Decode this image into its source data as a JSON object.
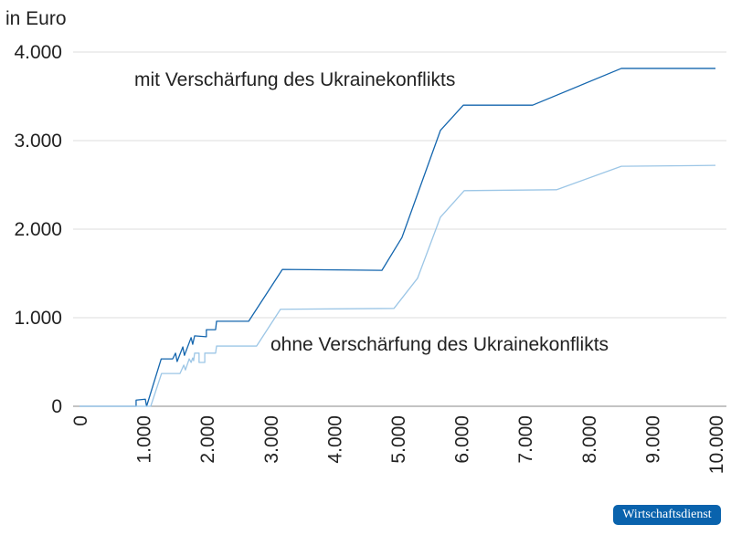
{
  "chart_data": {
    "type": "line",
    "ylabel": "in Euro",
    "ylim": [
      0,
      4000
    ],
    "xlim": [
      0,
      10000
    ],
    "yticks": [
      "0",
      "1.000",
      "2.000",
      "3.000",
      "4.000"
    ],
    "ytick_values": [
      0,
      1000,
      2000,
      3000,
      4000
    ],
    "xticks": [
      "0",
      "1.000",
      "2.000",
      "3.000",
      "4.000",
      "5.000",
      "6.000",
      "7.000",
      "8.000",
      "9.000",
      "10.000"
    ],
    "xtick_values": [
      0,
      1000,
      2000,
      3000,
      4000,
      5000,
      6000,
      7000,
      8000,
      9000,
      10000
    ],
    "grid": "horizontal",
    "series": [
      {
        "name": "mit Verschärfung des Ukrainekonflikts",
        "color": "#1466ae",
        "points": [
          [
            0,
            0
          ],
          [
            890,
            0
          ],
          [
            890,
            70
          ],
          [
            1035,
            80
          ],
          [
            1055,
            0
          ],
          [
            1285,
            535
          ],
          [
            1465,
            535
          ],
          [
            1510,
            600
          ],
          [
            1535,
            505
          ],
          [
            1625,
            670
          ],
          [
            1650,
            575
          ],
          [
            1755,
            775
          ],
          [
            1780,
            700
          ],
          [
            1810,
            795
          ],
          [
            1995,
            785
          ],
          [
            1995,
            865
          ],
          [
            2140,
            865
          ],
          [
            2155,
            960
          ],
          [
            2660,
            960
          ],
          [
            3190,
            1545
          ],
          [
            4755,
            1535
          ],
          [
            5070,
            1905
          ],
          [
            5675,
            3115
          ],
          [
            6035,
            3400
          ],
          [
            7125,
            3400
          ],
          [
            8520,
            3815
          ],
          [
            10000,
            3815
          ]
        ]
      },
      {
        "name": "ohne Verschärfung des Ukrainekonflikts",
        "color": "#9cc6e6",
        "points": [
          [
            0,
            0
          ],
          [
            1120,
            0
          ],
          [
            1290,
            370
          ],
          [
            1580,
            370
          ],
          [
            1640,
            465
          ],
          [
            1665,
            410
          ],
          [
            1725,
            535
          ],
          [
            1755,
            495
          ],
          [
            1780,
            545
          ],
          [
            1795,
            515
          ],
          [
            1810,
            600
          ],
          [
            1880,
            600
          ],
          [
            1880,
            495
          ],
          [
            1970,
            495
          ],
          [
            1970,
            600
          ],
          [
            2140,
            600
          ],
          [
            2155,
            680
          ],
          [
            2785,
            680
          ],
          [
            3160,
            1095
          ],
          [
            4945,
            1105
          ],
          [
            5315,
            1445
          ],
          [
            5675,
            2135
          ],
          [
            6050,
            2435
          ],
          [
            7500,
            2445
          ],
          [
            8520,
            2710
          ],
          [
            10000,
            2720
          ]
        ]
      }
    ]
  },
  "badge": "Wirtschaftsdienst"
}
